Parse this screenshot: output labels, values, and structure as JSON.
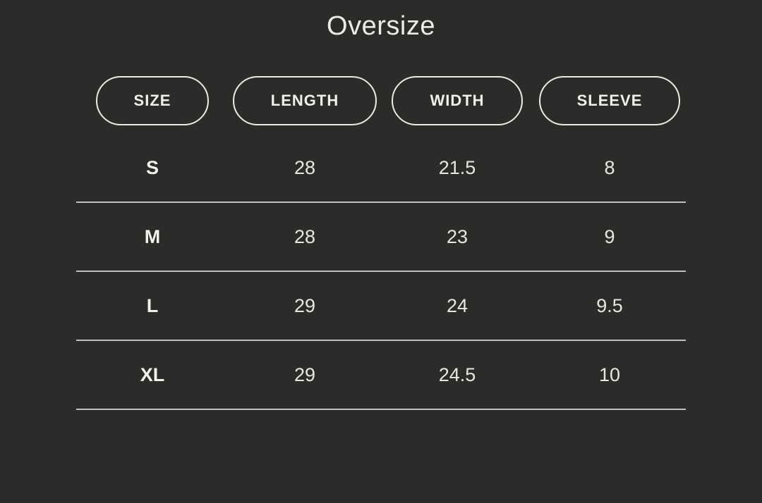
{
  "page": {
    "title": "Oversize"
  },
  "colors": {
    "background": "#2b2b29",
    "text": "#ece9e5",
    "pill_border": "#eceae6",
    "divider": "#bfbfbd"
  },
  "table": {
    "columns": [
      "SIZE",
      "LENGTH",
      "WIDTH",
      "SLEEVE"
    ],
    "rows": [
      [
        "S",
        "28",
        "21.5",
        "8"
      ],
      [
        "M",
        "28",
        "23",
        "9"
      ],
      [
        "L",
        "29",
        "24",
        "9.5"
      ],
      [
        "XL",
        "29",
        "24.5",
        "10"
      ]
    ]
  },
  "chart_data": {
    "type": "table",
    "title": "Oversize",
    "columns": [
      "SIZE",
      "LENGTH",
      "WIDTH",
      "SLEEVE"
    ],
    "rows": [
      [
        "S",
        28,
        21.5,
        8
      ],
      [
        "M",
        28,
        23,
        9
      ],
      [
        "L",
        29,
        24,
        9.5
      ],
      [
        "XL",
        29,
        24.5,
        10
      ]
    ]
  }
}
